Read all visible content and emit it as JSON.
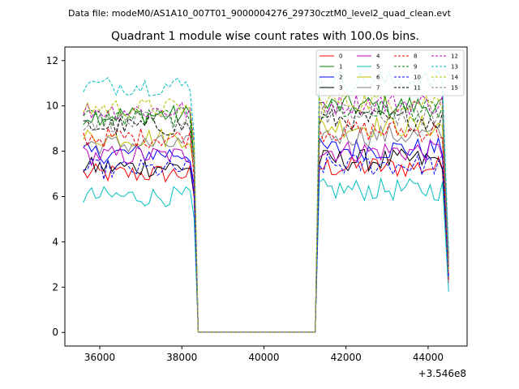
{
  "figure": {
    "suptitle": "Data file: modeM0/AS1A10_007T01_9000004276_29730cztM0_level2_quad_clean.evt",
    "title": "Quadrant 1 module wise count rates with 100.0s bins.",
    "offset_text": "+3.546e8"
  },
  "chart_data": {
    "type": "line",
    "title": "Quadrant 1 module wise count rates with 100.0s bins.",
    "xlabel": "",
    "ylabel": "",
    "x_offset": 354600000,
    "xlim": [
      35150,
      44950
    ],
    "ylim": [
      -0.6,
      12.6
    ],
    "xticks": [
      36000,
      38000,
      40000,
      42000,
      44000
    ],
    "xtick_labels": [
      "36000",
      "38000",
      "40000",
      "42000",
      "44000"
    ],
    "yticks": [
      0,
      2,
      4,
      6,
      8,
      10,
      12
    ],
    "ytick_labels": [
      "0",
      "2",
      "4",
      "6",
      "8",
      "10",
      "12"
    ],
    "grid": false,
    "legend_placement": "top-right",
    "segments": [
      {
        "start": 35600,
        "end": 38400
      },
      {
        "start": 41300,
        "end": 44500
      }
    ],
    "gap_level": 0.02,
    "series": [
      {
        "name": "0",
        "color": "#ff0000",
        "dash": "solid",
        "level_seg1": 7.0,
        "level_seg2": 7.3
      },
      {
        "name": "1",
        "color": "#008000",
        "dash": "solid",
        "level_seg1": 9.6,
        "level_seg2": 10.0
      },
      {
        "name": "2",
        "color": "#0000ff",
        "dash": "solid",
        "level_seg1": 7.9,
        "level_seg2": 8.1
      },
      {
        "name": "3",
        "color": "#000000",
        "dash": "solid",
        "level_seg1": 7.3,
        "level_seg2": 7.6
      },
      {
        "name": "4",
        "color": "#bf00bf",
        "dash": "solid",
        "level_seg1": 7.8,
        "level_seg2": 8.0
      },
      {
        "name": "5",
        "color": "#00bfbf",
        "dash": "solid",
        "level_seg1": 6.0,
        "level_seg2": 6.3
      },
      {
        "name": "6",
        "color": "#bfbf00",
        "dash": "solid",
        "level_seg1": 8.6,
        "level_seg2": 9.1
      },
      {
        "name": "7",
        "color": "#808080",
        "dash": "solid",
        "level_seg1": 8.3,
        "level_seg2": 8.7
      },
      {
        "name": "8",
        "color": "#ff0000",
        "dash": "dashed",
        "level_seg1": 8.6,
        "level_seg2": 8.9
      },
      {
        "name": "9",
        "color": "#008000",
        "dash": "dashed",
        "level_seg1": 9.5,
        "level_seg2": 9.8
      },
      {
        "name": "10",
        "color": "#0000ff",
        "dash": "dashed",
        "level_seg1": 7.2,
        "level_seg2": 7.4
      },
      {
        "name": "11",
        "color": "#000000",
        "dash": "dashed",
        "level_seg1": 9.1,
        "level_seg2": 9.4
      },
      {
        "name": "12",
        "color": "#bf00bf",
        "dash": "dashed",
        "level_seg1": 9.8,
        "level_seg2": 10.1
      },
      {
        "name": "13",
        "color": "#00bfbf",
        "dash": "dashed",
        "level_seg1": 10.9,
        "level_seg2": 11.1
      },
      {
        "name": "14",
        "color": "#bfbf00",
        "dash": "dashed",
        "level_seg1": 9.9,
        "level_seg2": 10.2
      },
      {
        "name": "15",
        "color": "#808080",
        "dash": "dashed",
        "level_seg1": 9.3,
        "level_seg2": 9.6
      }
    ]
  }
}
